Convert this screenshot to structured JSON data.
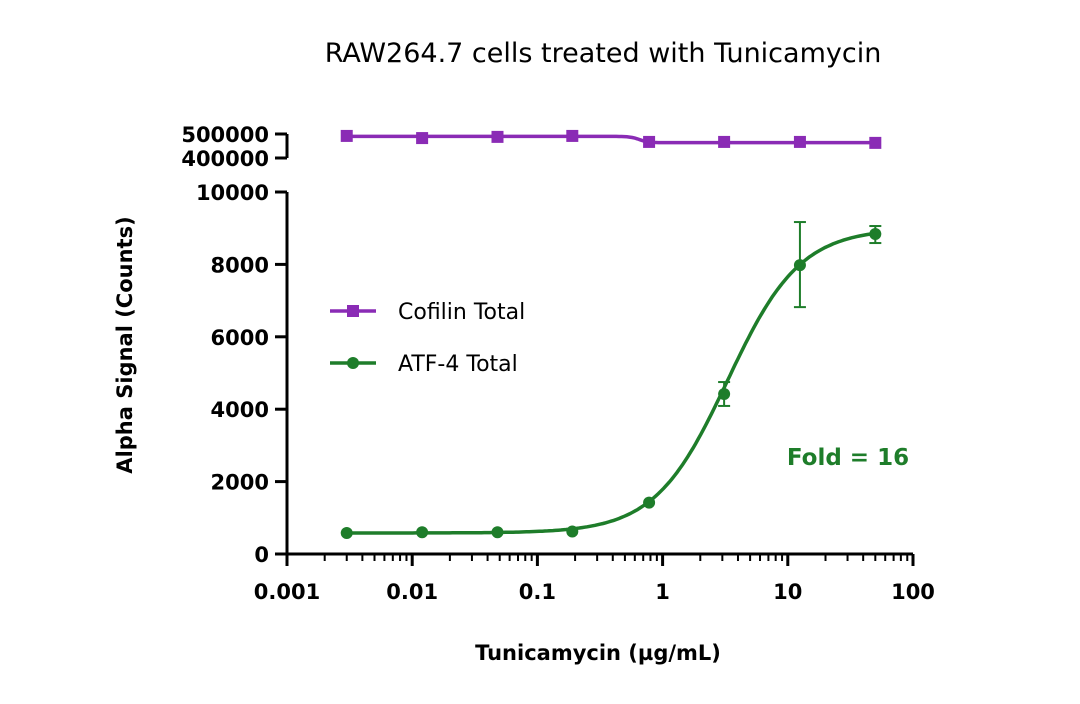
{
  "chart_data": {
    "type": "scatter",
    "title": "RAW264.7 cells treated with Tunicamycin",
    "xlabel": "Tunicamycin (µg/mL)",
    "ylabel": "Alpha Signal (Counts)",
    "xscale": "log",
    "xlim": [
      0.001,
      100
    ],
    "x_ticks": [
      "0.001",
      "0.01",
      "0.1",
      "1",
      "10",
      "100"
    ],
    "y_axis_broken": true,
    "ylim_lower": [
      0,
      10000
    ],
    "ylim_upper": [
      400000,
      500000
    ],
    "y_ticks_lower": [
      "0",
      "2000",
      "4000",
      "6000",
      "8000",
      "10000"
    ],
    "y_ticks_upper": [
      "400000",
      "500000"
    ],
    "grid": false,
    "legend_placement": "left",
    "annotation": "Fold = 16",
    "x": [
      0.003,
      0.012,
      0.048,
      0.19,
      0.78,
      3.1,
      12.5,
      50
    ],
    "series": [
      {
        "name": "Cofilin Total",
        "color": "#8a2bb5",
        "marker": "square",
        "values": [
          492000,
          483000,
          488000,
          492000,
          467000,
          467000,
          467000,
          463000
        ]
      },
      {
        "name": "ATF-4 Total",
        "color": "#1e7d2a",
        "marker": "circle",
        "values": [
          580,
          600,
          600,
          620,
          1420,
          4420,
          7980,
          8840
        ],
        "error_low": [
          null,
          null,
          null,
          null,
          null,
          4090,
          6820,
          8590
        ],
        "error_high": [
          null,
          null,
          null,
          null,
          null,
          4750,
          9170,
          9060
        ]
      }
    ]
  }
}
